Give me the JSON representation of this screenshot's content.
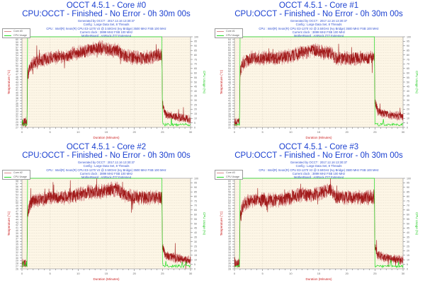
{
  "common": {
    "subtitle": "CPU:OCCT - Finished - No Error - 0h 30m 00s",
    "info_lines": [
      "Generated by OCCT : 2017.12.16 13:30:37",
      "Config : Large Data Set, 8 Threads",
      "CPU : Intel(R) Xeon(R) CPU E3-1270 V2 @ 3.50GHz (Ivy Bridge) 3500 MHz FSB 100 MHz",
      "Current clock : 3899 MHz FSB 100 MHz",
      "MotherBoard : ASRock Z77 Extreme4"
    ],
    "xlabel": "Duration (Minutes)",
    "ylabel_left": "Temperature (°C)",
    "ylabel_right": "CPU Usage (%)",
    "legend_usage": "CPU Usage",
    "colors": {
      "temp": "#a01818",
      "temp_light": "#d88a8a",
      "usage": "#22dd22",
      "plot_bg": "#fdf6e6",
      "grid": "#c8c0b0",
      "axis_label": "#cc2222"
    }
  },
  "panels": [
    {
      "title": "OCCT 4.5.1 - Core #0",
      "legend_temp": "Core #0"
    },
    {
      "title": "OCCT 4.5.1 - Core #1",
      "legend_temp": "Core #1"
    },
    {
      "title": "OCCT 4.5.1 - Core #2",
      "legend_temp": "Core #2"
    },
    {
      "title": "OCCT 4.5.1 - Core #3",
      "legend_temp": "Core #3"
    }
  ],
  "chart_data": [
    {
      "type": "line",
      "title": "OCCT 4.5.1 - Core #0",
      "subtitle": "CPU:OCCT - Finished - No Error - 0h 30m 00s",
      "xlabel": "Duration (Minutes)",
      "ylabel": "Temperature (°C)",
      "y2label": "CPU Usage (%)",
      "xlim": [
        0,
        30
      ],
      "ylim": [
        27,
        61
      ],
      "y2lim": [
        0,
        100
      ],
      "xticks": [
        0,
        5,
        10,
        15,
        20,
        25,
        30
      ],
      "grid": true,
      "legend_position": "top-left",
      "series": [
        {
          "name": "Core #0",
          "axis": "left",
          "x": [
            0,
            0.9,
            1.0,
            1.5,
            2,
            3,
            5,
            8,
            10,
            12,
            14,
            16,
            17,
            18,
            20,
            22,
            24,
            24.9,
            25.0,
            25.5,
            27,
            30
          ],
          "values": [
            29,
            29,
            46,
            50,
            51,
            52,
            53,
            54,
            55,
            56,
            57,
            56,
            56,
            54,
            53,
            53,
            54,
            54,
            36,
            32,
            31,
            30
          ]
        },
        {
          "name": "CPU Usage",
          "axis": "right",
          "x": [
            0,
            0.9,
            1.0,
            24.9,
            25.0,
            30
          ],
          "values": [
            3,
            3,
            100,
            100,
            3,
            3
          ]
        }
      ]
    },
    {
      "type": "line",
      "title": "OCCT 4.5.1 - Core #1",
      "subtitle": "CPU:OCCT - Finished - No Error - 0h 30m 00s",
      "xlabel": "Duration (Minutes)",
      "ylabel": "Temperature (°C)",
      "y2label": "CPU Usage (%)",
      "xlim": [
        0,
        30
      ],
      "ylim": [
        31,
        65
      ],
      "y2lim": [
        0,
        100
      ],
      "xticks": [
        0,
        5,
        10,
        15,
        20,
        25,
        30
      ],
      "grid": true,
      "legend_position": "top-left",
      "series": [
        {
          "name": "Core #1",
          "axis": "left",
          "x": [
            0,
            0.9,
            1.0,
            1.5,
            2,
            3,
            5,
            8,
            10,
            12,
            14,
            16,
            17,
            18,
            20,
            22,
            24,
            24.9,
            25.0,
            25.5,
            27,
            30
          ],
          "values": [
            33,
            33,
            52,
            55,
            56,
            57,
            57,
            57,
            58,
            59,
            60,
            59,
            59,
            57,
            57,
            57,
            57,
            57,
            41,
            37,
            36,
            35
          ]
        },
        {
          "name": "CPU Usage",
          "axis": "right",
          "x": [
            0,
            0.9,
            1.0,
            24.9,
            25.0,
            30
          ],
          "values": [
            3,
            3,
            100,
            100,
            3,
            3
          ]
        }
      ]
    },
    {
      "type": "line",
      "title": "OCCT 4.5.1 - Core #2",
      "subtitle": "CPU:OCCT - Finished - No Error - 0h 30m 00s",
      "xlabel": "Duration (Minutes)",
      "ylabel": "Temperature (°C)",
      "y2label": "CPU Usage (%)",
      "xlim": [
        0,
        30
      ],
      "ylim": [
        26,
        59
      ],
      "y2lim": [
        0,
        100
      ],
      "xticks": [
        0,
        5,
        10,
        15,
        20,
        25,
        30
      ],
      "grid": true,
      "legend_position": "top-left",
      "series": [
        {
          "name": "Core #2",
          "axis": "left",
          "x": [
            0,
            0.9,
            1.0,
            1.5,
            2,
            3,
            5,
            8,
            10,
            12,
            14,
            16,
            17,
            18,
            20,
            22,
            24,
            24.9,
            25.0,
            25.5,
            27,
            30
          ],
          "values": [
            28,
            28,
            46,
            50,
            51,
            51,
            52,
            52,
            53,
            54,
            54,
            55,
            55,
            53,
            52,
            52,
            52,
            52,
            34,
            31,
            30,
            29
          ]
        },
        {
          "name": "CPU Usage",
          "axis": "right",
          "x": [
            0,
            0.9,
            1.0,
            24.9,
            25.0,
            30
          ],
          "values": [
            3,
            3,
            100,
            100,
            3,
            3
          ]
        }
      ]
    },
    {
      "type": "line",
      "title": "OCCT 4.5.1 - Core #3",
      "subtitle": "CPU:OCCT - Finished - No Error - 0h 30m 00s",
      "xlabel": "Duration (Minutes)",
      "ylabel": "Temperature (°C)",
      "y2label": "CPU Usage (%)",
      "xlim": [
        0,
        30
      ],
      "ylim": [
        28,
        61
      ],
      "y2lim": [
        0,
        100
      ],
      "xticks": [
        0,
        5,
        10,
        15,
        20,
        25,
        30
      ],
      "grid": true,
      "legend_position": "top-left",
      "series": [
        {
          "name": "Core #3",
          "axis": "left",
          "x": [
            0,
            0.9,
            1.0,
            1.5,
            2,
            3,
            5,
            8,
            10,
            12,
            14,
            16,
            17,
            18,
            20,
            22,
            24,
            24.9,
            25.0,
            25.5,
            27,
            30
          ],
          "values": [
            30,
            30,
            47,
            51,
            52,
            53,
            53,
            53,
            54,
            55,
            55,
            56,
            57,
            54,
            54,
            54,
            54,
            54,
            36,
            33,
            32,
            31
          ]
        },
        {
          "name": "CPU Usage",
          "axis": "right",
          "x": [
            0,
            0.9,
            1.0,
            24.9,
            25.0,
            30
          ],
          "values": [
            3,
            3,
            100,
            100,
            3,
            3
          ]
        }
      ]
    }
  ]
}
